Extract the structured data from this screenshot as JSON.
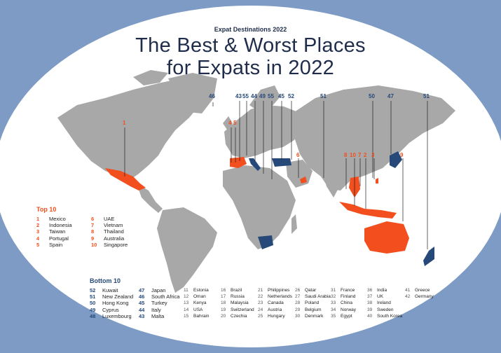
{
  "header": {
    "kicker": "Expat Destinations 2022",
    "title_line1": "The Best & Worst Places",
    "title_line2": "for Expats in 2022"
  },
  "colors": {
    "top": "#f24e1e",
    "bottom": "#26497a",
    "land": "#a8a8a8",
    "background": "#7d9bc4"
  },
  "legend": {
    "top_title": "Top 10",
    "bottom_title": "Bottom 10",
    "top": [
      {
        "rank": "1",
        "name": "Mexico"
      },
      {
        "rank": "2",
        "name": "Indonesia"
      },
      {
        "rank": "3",
        "name": "Taiwan"
      },
      {
        "rank": "4",
        "name": "Portugal"
      },
      {
        "rank": "5",
        "name": "Spain"
      },
      {
        "rank": "6",
        "name": "UAE"
      },
      {
        "rank": "7",
        "name": "Vietnam"
      },
      {
        "rank": "8",
        "name": "Thailand"
      },
      {
        "rank": "9",
        "name": "Australia"
      },
      {
        "rank": "10",
        "name": "Singapore"
      }
    ],
    "bottom": [
      {
        "rank": "52",
        "name": "Kuwait"
      },
      {
        "rank": "51",
        "name": "New Zealand"
      },
      {
        "rank": "50",
        "name": "Hong Kong"
      },
      {
        "rank": "49",
        "name": "Cyprus"
      },
      {
        "rank": "48",
        "name": "Luxembourg"
      },
      {
        "rank": "47",
        "name": "Japan"
      },
      {
        "rank": "46",
        "name": "South Africa"
      },
      {
        "rank": "45",
        "name": "Turkey"
      },
      {
        "rank": "44",
        "name": "Italy"
      },
      {
        "rank": "43",
        "name": "Malta"
      }
    ],
    "middle": [
      {
        "rank": "11",
        "name": "Estonia"
      },
      {
        "rank": "12",
        "name": "Oman"
      },
      {
        "rank": "13",
        "name": "Kenya"
      },
      {
        "rank": "14",
        "name": "USA"
      },
      {
        "rank": "15",
        "name": "Bahrain"
      },
      {
        "rank": "16",
        "name": "Brazil"
      },
      {
        "rank": "17",
        "name": "Russia"
      },
      {
        "rank": "18",
        "name": "Malaysia"
      },
      {
        "rank": "19",
        "name": "Switzerland"
      },
      {
        "rank": "20",
        "name": "Czechia"
      },
      {
        "rank": "21",
        "name": "Philippines"
      },
      {
        "rank": "22",
        "name": "Netherlands"
      },
      {
        "rank": "23",
        "name": "Canada"
      },
      {
        "rank": "24",
        "name": "Austria"
      },
      {
        "rank": "25",
        "name": "Hungary"
      },
      {
        "rank": "26",
        "name": "Qatar"
      },
      {
        "rank": "27",
        "name": "Saudi Arabia"
      },
      {
        "rank": "28",
        "name": "Poland"
      },
      {
        "rank": "29",
        "name": "Belgium"
      },
      {
        "rank": "30",
        "name": "Denmark"
      },
      {
        "rank": "31",
        "name": "France"
      },
      {
        "rank": "32",
        "name": "Finland"
      },
      {
        "rank": "33",
        "name": "China"
      },
      {
        "rank": "34",
        "name": "Norway"
      },
      {
        "rank": "35",
        "name": "Egypt"
      },
      {
        "rank": "36",
        "name": "India"
      },
      {
        "rank": "37",
        "name": "UK"
      },
      {
        "rank": "38",
        "name": "Ireland"
      },
      {
        "rank": "39",
        "name": "Sweden"
      },
      {
        "rank": "40",
        "name": "South Korea"
      },
      {
        "rank": "41",
        "name": "Greece"
      },
      {
        "rank": "42",
        "name": "Germany"
      }
    ]
  },
  "map_labels": [
    {
      "text": "1",
      "kind": "top"
    },
    {
      "text": "4",
      "kind": "top"
    },
    {
      "text": "5",
      "kind": "top"
    },
    {
      "text": "6",
      "kind": "top"
    },
    {
      "text": "8",
      "kind": "top"
    },
    {
      "text": "10",
      "kind": "top"
    },
    {
      "text": "7",
      "kind": "top"
    },
    {
      "text": "2",
      "kind": "top"
    },
    {
      "text": "3",
      "kind": "top"
    },
    {
      "text": "9",
      "kind": "top"
    },
    {
      "text": "46",
      "kind": "bottom"
    },
    {
      "text": "43",
      "kind": "bottom"
    },
    {
      "text": "55",
      "kind": "bottom"
    },
    {
      "text": "44",
      "kind": "bottom"
    },
    {
      "text": "49",
      "kind": "bottom"
    },
    {
      "text": "55",
      "kind": "bottom"
    },
    {
      "text": "45",
      "kind": "bottom"
    },
    {
      "text": "52",
      "kind": "bottom"
    },
    {
      "text": "51",
      "kind": "bottom"
    },
    {
      "text": "50",
      "kind": "bottom"
    },
    {
      "text": "47",
      "kind": "bottom"
    },
    {
      "text": "51",
      "kind": "bottom"
    }
  ]
}
